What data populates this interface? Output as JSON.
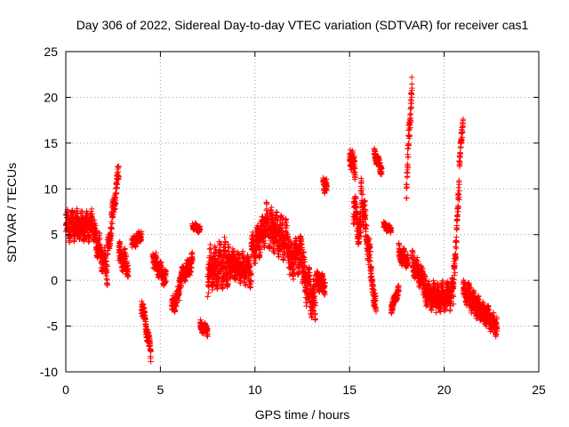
{
  "chart_data": {
    "type": "scatter",
    "title": "Day 306 of 2022, Sidereal Day-to-day VTEC variation (SDTVAR) for receiver cas1",
    "xlabel": "GPS time / hours",
    "ylabel": "SDTVAR / TECUs",
    "xlim": [
      0,
      25
    ],
    "ylim": [
      -10,
      25
    ],
    "xticks": [
      0,
      5,
      10,
      15,
      20,
      25
    ],
    "yticks": [
      -10,
      -5,
      0,
      5,
      10,
      15,
      20,
      25
    ],
    "grid": true,
    "marker": "plus",
    "series_color": "#ff0000",
    "series": [
      {
        "name": "SDTVAR",
        "segments": [
          {
            "t0": 0.0,
            "t1": 1.5,
            "v0": 6.0,
            "v1": 6.0,
            "spread": 2.5
          },
          {
            "t0": 1.5,
            "t1": 2.2,
            "v0": 5.0,
            "v1": 1.0,
            "spread": 2.5
          },
          {
            "t0": 2.2,
            "t1": 2.8,
            "v0": 3.0,
            "v1": 12.0,
            "spread": 2.0
          },
          {
            "t0": 2.8,
            "t1": 3.3,
            "v0": 3.0,
            "v1": 1.5,
            "spread": 2.0
          },
          {
            "t0": 3.5,
            "t1": 4.0,
            "v0": 4.0,
            "v1": 5.0,
            "spread": 1.0
          },
          {
            "t0": 4.0,
            "t1": 4.5,
            "v0": -2.5,
            "v1": -8.0,
            "spread": 1.5
          },
          {
            "t0": 4.6,
            "t1": 5.3,
            "v0": 2.5,
            "v1": 0.0,
            "spread": 1.5
          },
          {
            "t0": 5.6,
            "t1": 6.0,
            "v0": -3.0,
            "v1": -1.5,
            "spread": 1.5
          },
          {
            "t0": 6.0,
            "t1": 6.7,
            "v0": 0.0,
            "v1": 2.0,
            "spread": 1.5
          },
          {
            "t0": 6.7,
            "t1": 7.1,
            "v0": 6.0,
            "v1": 5.5,
            "spread": 0.6
          },
          {
            "t0": 7.1,
            "t1": 7.5,
            "v0": -5.0,
            "v1": -5.5,
            "spread": 1.0
          },
          {
            "t0": 7.5,
            "t1": 8.6,
            "v0": 1.0,
            "v1": 2.0,
            "spread": 4.0
          },
          {
            "t0": 8.6,
            "t1": 9.8,
            "v0": 2.0,
            "v1": 1.0,
            "spread": 2.5
          },
          {
            "t0": 9.8,
            "t1": 10.6,
            "v0": 3.0,
            "v1": 6.0,
            "spread": 3.0
          },
          {
            "t0": 10.6,
            "t1": 11.8,
            "v0": 6.0,
            "v1": 4.0,
            "spread": 3.5
          },
          {
            "t0": 11.8,
            "t1": 12.5,
            "v0": 2.0,
            "v1": 3.0,
            "spread": 3.0
          },
          {
            "t0": 12.5,
            "t1": 13.2,
            "v0": 1.0,
            "v1": -3.0,
            "spread": 3.5
          },
          {
            "t0": 13.2,
            "t1": 13.7,
            "v0": 0.0,
            "v1": -0.5,
            "spread": 1.5
          },
          {
            "t0": 13.6,
            "t1": 13.8,
            "v0": 11.0,
            "v1": 10.0,
            "spread": 1.5
          },
          {
            "t0": 15.0,
            "t1": 15.3,
            "v0": 14.0,
            "v1": 12.0,
            "spread": 2.0
          },
          {
            "t0": 15.2,
            "t1": 15.6,
            "v0": 8.0,
            "v1": 5.0,
            "spread": 3.0
          },
          {
            "t0": 15.6,
            "t1": 16.1,
            "v0": 10.0,
            "v1": 2.0,
            "spread": 3.0
          },
          {
            "t0": 16.1,
            "t1": 16.4,
            "v0": 1.0,
            "v1": -3.0,
            "spread": 2.0
          },
          {
            "t0": 16.3,
            "t1": 16.7,
            "v0": 14.0,
            "v1": 12.0,
            "spread": 1.0
          },
          {
            "t0": 16.8,
            "t1": 17.2,
            "v0": 6.0,
            "v1": 5.5,
            "spread": 0.6
          },
          {
            "t0": 17.2,
            "t1": 17.6,
            "v0": -3.0,
            "v1": -1.0,
            "spread": 1.0
          },
          {
            "t0": 17.6,
            "t1": 18.1,
            "v0": 3.0,
            "v1": 2.0,
            "spread": 1.5
          },
          {
            "t0": 18.0,
            "t1": 18.3,
            "v0": 10.0,
            "v1": 22.0,
            "spread": 2.5
          },
          {
            "t0": 18.3,
            "t1": 18.9,
            "v0": 2.0,
            "v1": 0.0,
            "spread": 2.0
          },
          {
            "t0": 18.9,
            "t1": 19.6,
            "v0": -1.0,
            "v1": -2.0,
            "spread": 2.5
          },
          {
            "t0": 19.6,
            "t1": 20.5,
            "v0": -2.0,
            "v1": -1.5,
            "spread": 2.5
          },
          {
            "t0": 20.5,
            "t1": 20.8,
            "v0": 0.0,
            "v1": 10.0,
            "spread": 2.5
          },
          {
            "t0": 20.8,
            "t1": 21.0,
            "v0": 13.0,
            "v1": 17.0,
            "spread": 1.5
          },
          {
            "t0": 21.0,
            "t1": 21.8,
            "v0": -1.0,
            "v1": -3.0,
            "spread": 2.0
          },
          {
            "t0": 21.8,
            "t1": 22.8,
            "v0": -3.0,
            "v1": -5.0,
            "spread": 1.8
          }
        ]
      }
    ]
  }
}
